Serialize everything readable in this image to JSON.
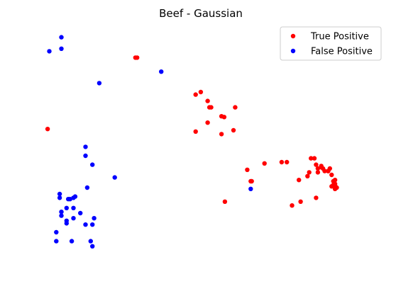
{
  "chart_data": {
    "type": "scatter",
    "title": "Beef - Gaussian",
    "xlabel": "",
    "ylabel": "",
    "axes_visible": false,
    "grid": false,
    "xlim": [
      0,
      100
    ],
    "ylim": [
      0,
      100
    ],
    "legend_position": "top-right",
    "series": [
      {
        "name": "True Positive",
        "color": "#ff0000",
        "points": [
          [
            2.5,
            60.5
          ],
          [
            28.0,
            88.5
          ],
          [
            28.5,
            88.5
          ],
          [
            45.5,
            74.0
          ],
          [
            47.0,
            75.0
          ],
          [
            49.0,
            71.5
          ],
          [
            49.5,
            69.0
          ],
          [
            50.0,
            69.0
          ],
          [
            53.0,
            65.5
          ],
          [
            53.8,
            65.2
          ],
          [
            57.0,
            69.0
          ],
          [
            49.0,
            63.0
          ],
          [
            45.5,
            59.5
          ],
          [
            53.0,
            58.5
          ],
          [
            56.5,
            60.0
          ],
          [
            60.5,
            44.5
          ],
          [
            65.5,
            47.0
          ],
          [
            70.5,
            47.5
          ],
          [
            72.0,
            47.5
          ],
          [
            61.5,
            40.0
          ],
          [
            61.8,
            40.0
          ],
          [
            54.0,
            32.0
          ],
          [
            75.5,
            40.5
          ],
          [
            78.0,
            42.0
          ],
          [
            78.5,
            43.5
          ],
          [
            79.0,
            49.0
          ],
          [
            80.0,
            49.0
          ],
          [
            80.5,
            46.5
          ],
          [
            81.0,
            43.5
          ],
          [
            82.0,
            46.0
          ],
          [
            81.0,
            45.0
          ],
          [
            82.0,
            45.5
          ],
          [
            82.5,
            45.0
          ],
          [
            83.0,
            44.0
          ],
          [
            84.0,
            44.0
          ],
          [
            84.5,
            45.0
          ],
          [
            85.0,
            42.5
          ],
          [
            85.5,
            40.0
          ],
          [
            86.0,
            40.5
          ],
          [
            86.0,
            39.0
          ],
          [
            85.5,
            38.5
          ],
          [
            86.0,
            37.0
          ],
          [
            86.5,
            37.5
          ],
          [
            85.0,
            38.0
          ],
          [
            86.0,
            38.5
          ],
          [
            84.0,
            44.0
          ],
          [
            80.5,
            33.5
          ],
          [
            76.0,
            32.0
          ],
          [
            73.5,
            30.5
          ]
        ]
      },
      {
        "name": "False Positive",
        "color": "#0000ff",
        "points": [
          [
            3.0,
            91.0
          ],
          [
            6.5,
            96.5
          ],
          [
            6.5,
            92.0
          ],
          [
            35.5,
            83.0
          ],
          [
            17.5,
            78.5
          ],
          [
            61.5,
            37.0
          ],
          [
            13.5,
            53.5
          ],
          [
            13.5,
            50.0
          ],
          [
            15.5,
            46.5
          ],
          [
            22.0,
            41.5
          ],
          [
            14.0,
            37.5
          ],
          [
            6.0,
            35.0
          ],
          [
            6.0,
            33.5
          ],
          [
            8.5,
            33.0
          ],
          [
            9.0,
            33.0
          ],
          [
            10.0,
            33.5
          ],
          [
            10.5,
            34.0
          ],
          [
            8.0,
            29.5
          ],
          [
            10.0,
            29.5
          ],
          [
            6.5,
            28.0
          ],
          [
            6.5,
            26.5
          ],
          [
            8.0,
            24.5
          ],
          [
            8.0,
            23.5
          ],
          [
            10.0,
            25.5
          ],
          [
            12.0,
            27.5
          ],
          [
            13.5,
            23.0
          ],
          [
            16.0,
            25.5
          ],
          [
            15.5,
            23.0
          ],
          [
            5.0,
            20.0
          ],
          [
            5.0,
            16.5
          ],
          [
            9.5,
            16.5
          ],
          [
            15.0,
            16.5
          ],
          [
            15.5,
            14.5
          ]
        ]
      }
    ]
  }
}
